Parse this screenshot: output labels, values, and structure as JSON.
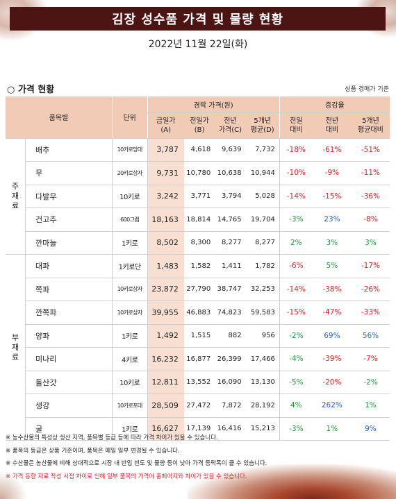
{
  "title": "김장 성수품 가격 및 물량 현황",
  "date": "2022년 11월 22일(화)",
  "section": {
    "title": "○ 가격 현황",
    "note": "상품 경매가 기준"
  },
  "table": {
    "headers": {
      "item": "품목별",
      "unit": "단위",
      "price_group": "경락 가격(원)",
      "change_group": "증감율",
      "today_l1": "금일가",
      "today_l2": "(A)",
      "prevday_l1": "전일가",
      "prevday_l2": "(B)",
      "lastyear_l1": "전년",
      "lastyear_l2": "가격(C)",
      "avg5_l1": "5개년",
      "avg5_l2": "평균(D)",
      "vs_prevday_l1": "전일",
      "vs_prevday_l2": "대비",
      "vs_lastyear_l1": "전년",
      "vs_lastyear_l2": "대비",
      "vs_avg5_l1": "5개년",
      "vs_avg5_l2": "평균대비"
    },
    "groups": [
      {
        "label": "주재료",
        "label_chars": [
          "주",
          "재",
          "료"
        ]
      },
      {
        "label": "부재료",
        "label_chars": [
          "부",
          "재",
          "료"
        ]
      }
    ],
    "rows": [
      {
        "name": "배추",
        "unit": "10키로망대",
        "today": "3,787",
        "prev": "4,618",
        "lastyear": "9,639",
        "avg5": "7,732",
        "d_prev": "-18%",
        "d_year": "-61%",
        "d_avg5": "-51%",
        "c_prev": "red",
        "c_year": "red",
        "c_avg5": "red"
      },
      {
        "name": "무",
        "unit": "20키로상자",
        "today": "9,731",
        "prev": "10,780",
        "lastyear": "10,638",
        "avg5": "10,944",
        "d_prev": "-10%",
        "d_year": "-9%",
        "d_avg5": "-11%",
        "c_prev": "red",
        "c_year": "red",
        "c_avg5": "red"
      },
      {
        "name": "다발무",
        "unit": "10키로",
        "today": "3,242",
        "prev": "3,771",
        "lastyear": "3,794",
        "avg5": "5,028",
        "d_prev": "-14%",
        "d_year": "-15%",
        "d_avg5": "-36%",
        "c_prev": "red",
        "c_year": "red",
        "c_avg5": "red"
      },
      {
        "name": "건고추",
        "unit": "600그램",
        "today": "18,163",
        "prev": "18,814",
        "lastyear": "14,765",
        "avg5": "19,704",
        "d_prev": "-3%",
        "d_year": "23%",
        "d_avg5": "-8%",
        "c_prev": "green",
        "c_year": "blue",
        "c_avg5": "red"
      },
      {
        "name": "깐마늘",
        "unit": "1키로",
        "today": "8,502",
        "prev": "8,300",
        "lastyear": "8,277",
        "avg5": "8,277",
        "d_prev": "2%",
        "d_year": "3%",
        "d_avg5": "3%",
        "c_prev": "green",
        "c_year": "green",
        "c_avg5": "green"
      },
      {
        "name": "대파",
        "unit": "1키로단",
        "today": "1,483",
        "prev": "1,582",
        "lastyear": "1,411",
        "avg5": "1,782",
        "d_prev": "-6%",
        "d_year": "5%",
        "d_avg5": "-17%",
        "c_prev": "red",
        "c_year": "green",
        "c_avg5": "red"
      },
      {
        "name": "쪽파",
        "unit": "10키로상자",
        "today": "23,872",
        "prev": "27,790",
        "lastyear": "38,747",
        "avg5": "32,253",
        "d_prev": "-14%",
        "d_year": "-38%",
        "d_avg5": "-26%",
        "c_prev": "red",
        "c_year": "red",
        "c_avg5": "red"
      },
      {
        "name": "깐쪽파",
        "unit": "10키로상자",
        "today": "39,955",
        "prev": "46,883",
        "lastyear": "74,823",
        "avg5": "59,583",
        "d_prev": "-15%",
        "d_year": "-47%",
        "d_avg5": "-33%",
        "c_prev": "red",
        "c_year": "red",
        "c_avg5": "red"
      },
      {
        "name": "양파",
        "unit": "1키로",
        "today": "1,492",
        "prev": "1,515",
        "lastyear": "882",
        "avg5": "956",
        "d_prev": "-2%",
        "d_year": "69%",
        "d_avg5": "56%",
        "c_prev": "green",
        "c_year": "blue",
        "c_avg5": "blue"
      },
      {
        "name": "미나리",
        "unit": "4키로",
        "today": "16,232",
        "prev": "16,877",
        "lastyear": "26,399",
        "avg5": "17,466",
        "d_prev": "-4%",
        "d_year": "-39%",
        "d_avg5": "-7%",
        "c_prev": "green",
        "c_year": "red",
        "c_avg5": "red"
      },
      {
        "name": "돌산갓",
        "unit": "10키로",
        "today": "12,811",
        "prev": "13,552",
        "lastyear": "16,090",
        "avg5": "13,130",
        "d_prev": "-5%",
        "d_year": "-20%",
        "d_avg5": "-2%",
        "c_prev": "green",
        "c_year": "red",
        "c_avg5": "green"
      },
      {
        "name": "생강",
        "unit": "10키로포대",
        "today": "28,509",
        "prev": "27,472",
        "lastyear": "7,872",
        "avg5": "28,192",
        "d_prev": "4%",
        "d_year": "262%",
        "d_avg5": "1%",
        "c_prev": "green",
        "c_year": "blue",
        "c_avg5": "green"
      },
      {
        "name": "굴",
        "unit": "1키로",
        "today": "16,627",
        "prev": "17,139",
        "lastyear": "16,416",
        "avg5": "15,213",
        "d_prev": "-3%",
        "d_year": "1%",
        "d_avg5": "9%",
        "c_prev": "green",
        "c_year": "green",
        "c_avg5": "blue"
      }
    ]
  },
  "footnotes": [
    {
      "text": "※ 농수산물의 특성상 생산 지역, 품목별 등급 등에 따라 가격 차이가 있을 수 있습니다.",
      "color": "#222222"
    },
    {
      "text": "※ 품목의 등급은 상품 기준이며, 품목은 매일 일부 변경될 수 있습니다.",
      "color": "#222222"
    },
    {
      "text": "※ 수산물은 농산물에 비해 상대적으로 시장 내 반입 빈도 및 물량 등이 낮아 가격 등락폭이 클 수 있습니다.",
      "color": "#222222"
    },
    {
      "text": "※ 가격 동향 자료 작성 시점 차이로 인해 일부 품목의 가격이 홈페이지와 차이가 있을 수 있습니다.",
      "color": "#e0222b"
    }
  ],
  "colors": {
    "title_bg": "#4d1414",
    "header_bg": "#f1cbb6",
    "today_bg": "#f8dfd1",
    "negative": "#d9262b",
    "positive_large": "#2b64c4",
    "small_change": "#1f9a3c"
  }
}
